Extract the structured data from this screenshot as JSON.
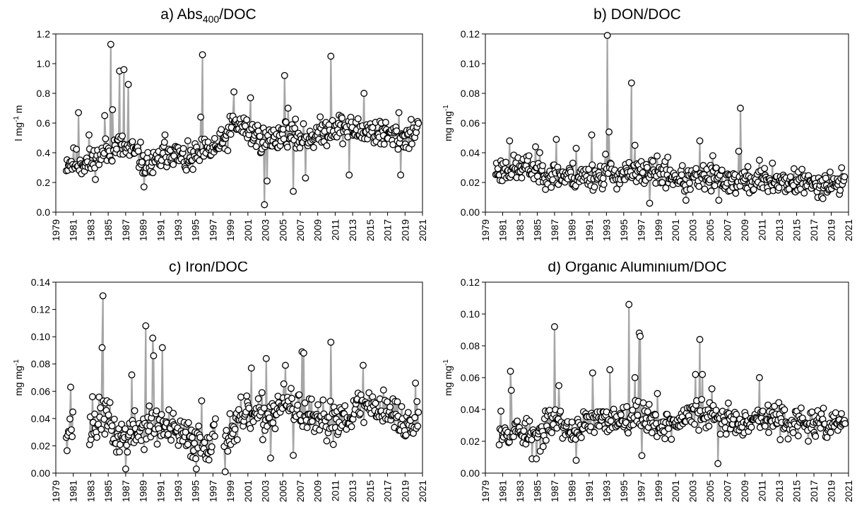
{
  "chart_data": [
    {
      "type": "scatter",
      "title": "a) Abs",
      "title_sub": "400",
      "title_tail": "/DOC",
      "ylabel": "l mg",
      "ylabel_sup": "-1",
      "ylabel_tail": " m",
      "xlim": [
        1979,
        2021
      ],
      "ylim": [
        0,
        1.2
      ],
      "yticks": [
        "0.0",
        "0.2",
        "0.4",
        "0.6",
        "0.8",
        "1.0",
        "1.2"
      ],
      "ytick_values": [
        0,
        0.2,
        0.4,
        0.6,
        0.8,
        1.0,
        1.2
      ],
      "xticks": [
        "1979",
        "1981",
        "1983",
        "1985",
        "1987",
        "1989",
        "1991",
        "1993",
        "1995",
        "1997",
        "1999",
        "2001",
        "2003",
        "2005",
        "2007",
        "2009",
        "2011",
        "2013",
        "2015",
        "2017",
        "2019",
        "2021"
      ],
      "grid": false,
      "marker": "open-circle",
      "line_color": "#a6a6a6",
      "start": 1980.2,
      "end": 2020.6,
      "gaps": [],
      "seed": 11,
      "baseline": [
        [
          1980,
          0.34
        ],
        [
          1983,
          0.33
        ],
        [
          1986,
          0.45
        ],
        [
          1988,
          0.4
        ],
        [
          1990,
          0.3
        ],
        [
          1992,
          0.42
        ],
        [
          1994,
          0.34
        ],
        [
          1996,
          0.4
        ],
        [
          1998,
          0.45
        ],
        [
          1999.5,
          0.6
        ],
        [
          2001,
          0.55
        ],
        [
          2003,
          0.48
        ],
        [
          2005,
          0.52
        ],
        [
          2007,
          0.5
        ],
        [
          2009,
          0.52
        ],
        [
          2011,
          0.58
        ],
        [
          2013,
          0.55
        ],
        [
          2015,
          0.55
        ],
        [
          2017,
          0.52
        ],
        [
          2019,
          0.5
        ],
        [
          2020.6,
          0.58
        ]
      ],
      "noise": 0.06,
      "peaks": [
        [
          1981.6,
          0.67
        ],
        [
          1982.8,
          0.52
        ],
        [
          1984.6,
          0.65
        ],
        [
          1985.3,
          1.13
        ],
        [
          1985.5,
          0.69
        ],
        [
          1986.3,
          0.95
        ],
        [
          1986.8,
          0.96
        ],
        [
          1987.3,
          0.86
        ],
        [
          1989.1,
          0.17
        ],
        [
          1991.5,
          0.52
        ],
        [
          1995.6,
          0.64
        ],
        [
          1995.8,
          1.06
        ],
        [
          1999.4,
          0.81
        ],
        [
          2001.3,
          0.77
        ],
        [
          2002.9,
          0.05
        ],
        [
          2003.2,
          0.21
        ],
        [
          2005.2,
          0.92
        ],
        [
          2005.6,
          0.7
        ],
        [
          2006.2,
          0.14
        ],
        [
          2007.6,
          0.23
        ],
        [
          2010.5,
          1.05
        ],
        [
          2012.6,
          0.25
        ],
        [
          2014.3,
          0.8
        ],
        [
          2018.5,
          0.25
        ],
        [
          2018.3,
          0.67
        ]
      ]
    },
    {
      "type": "scatter",
      "title": "b) DON/DOC",
      "ylabel": "mg mg",
      "ylabel_sup": "-1",
      "xlim": [
        1979,
        2021
      ],
      "ylim": [
        0,
        0.12
      ],
      "yticks": [
        "0.00",
        "0.02",
        "0.04",
        "0.06",
        "0.08",
        "0.10",
        "0.12"
      ],
      "ytick_values": [
        0,
        0.02,
        0.04,
        0.06,
        0.08,
        0.1,
        0.12
      ],
      "xticks": [
        "1979",
        "1981",
        "1983",
        "1985",
        "1987",
        "1989",
        "1991",
        "1993",
        "1995",
        "1997",
        "1999",
        "2001",
        "2003",
        "2005",
        "2007",
        "2009",
        "2011",
        "2013",
        "2015",
        "2017",
        "2019",
        "2021"
      ],
      "grid": false,
      "marker": "open-circle",
      "line_color": "#a6a6a6",
      "start": 1980.2,
      "end": 2020.6,
      "gaps": [],
      "seed": 23,
      "baseline": [
        [
          1980,
          0.028
        ],
        [
          1984,
          0.03
        ],
        [
          1987,
          0.025
        ],
        [
          1990,
          0.024
        ],
        [
          1993,
          0.025
        ],
        [
          1996,
          0.026
        ],
        [
          1999,
          0.027
        ],
        [
          2002,
          0.022
        ],
        [
          2005,
          0.023
        ],
        [
          2008,
          0.021
        ],
        [
          2011,
          0.021
        ],
        [
          2014,
          0.02
        ],
        [
          2017,
          0.019
        ],
        [
          2020.6,
          0.02
        ]
      ],
      "noise": 0.0055,
      "peaks": [
        [
          1981.8,
          0.048
        ],
        [
          1984.8,
          0.044
        ],
        [
          1987.2,
          0.049
        ],
        [
          1989.5,
          0.043
        ],
        [
          1991.3,
          0.052
        ],
        [
          1992.9,
          0.039
        ],
        [
          1993.1,
          0.119
        ],
        [
          1993.3,
          0.054
        ],
        [
          1995.9,
          0.087
        ],
        [
          1996.3,
          0.045
        ],
        [
          1998.0,
          0.006
        ],
        [
          2000.1,
          0.037
        ],
        [
          2002.2,
          0.008
        ],
        [
          2003.8,
          0.048
        ],
        [
          2005.3,
          0.038
        ],
        [
          2006.0,
          0.008
        ],
        [
          2008.3,
          0.041
        ],
        [
          2008.5,
          0.07
        ],
        [
          2010.7,
          0.035
        ],
        [
          2012.2,
          0.033
        ],
        [
          2015.2,
          0.027
        ]
      ]
    },
    {
      "type": "scatter",
      "title": "c) Iron/DOC",
      "ylabel": "mg mg",
      "ylabel_sup": "-1",
      "xlim": [
        1979,
        2021
      ],
      "ylim": [
        0,
        0.14
      ],
      "yticks": [
        "0.00",
        "0.02",
        "0.04",
        "0.06",
        "0.08",
        "0.10",
        "0.12",
        "0.14"
      ],
      "ytick_values": [
        0,
        0.02,
        0.04,
        0.06,
        0.08,
        0.1,
        0.12,
        0.14
      ],
      "xticks": [
        "1979",
        "1981",
        "1983",
        "1985",
        "1987",
        "1989",
        "1991",
        "1993",
        "1995",
        "1997",
        "1999",
        "2001",
        "2003",
        "2005",
        "2007",
        "2009",
        "2011",
        "2013",
        "2015",
        "2017",
        "2019",
        "2021"
      ],
      "grid": false,
      "marker": "open-circle",
      "line_color": "#a6a6a6",
      "start": 1980.2,
      "end": 2020.6,
      "gaps": [
        [
          1981.0,
          1982.8
        ],
        [
          1997.3,
          1998.2
        ]
      ],
      "seed": 37,
      "baseline": [
        [
          1980,
          0.033
        ],
        [
          1983,
          0.03
        ],
        [
          1984.5,
          0.045
        ],
        [
          1986,
          0.025
        ],
        [
          1988,
          0.03
        ],
        [
          1990,
          0.035
        ],
        [
          1992,
          0.032
        ],
        [
          1994,
          0.025
        ],
        [
          1996,
          0.022
        ],
        [
          1999,
          0.03
        ],
        [
          2001,
          0.042
        ],
        [
          2003,
          0.04
        ],
        [
          2005,
          0.05
        ],
        [
          2007,
          0.045
        ],
        [
          2009,
          0.035
        ],
        [
          2011,
          0.04
        ],
        [
          2013,
          0.045
        ],
        [
          2015,
          0.05
        ],
        [
          2017,
          0.047
        ],
        [
          2019,
          0.035
        ],
        [
          2020.6,
          0.038
        ]
      ],
      "noise": 0.009,
      "peaks": [
        [
          1980.7,
          0.063
        ],
        [
          1983.2,
          0.056
        ],
        [
          1984.3,
          0.092
        ],
        [
          1984.4,
          0.13
        ],
        [
          1987.0,
          0.003
        ],
        [
          1987.7,
          0.072
        ],
        [
          1989.3,
          0.108
        ],
        [
          1990.1,
          0.099
        ],
        [
          1990.2,
          0.086
        ],
        [
          1991.2,
          0.092
        ],
        [
          1995.1,
          0.003
        ],
        [
          1995.7,
          0.053
        ],
        [
          1998.4,
          0.001
        ],
        [
          2001.4,
          0.077
        ],
        [
          2003.1,
          0.084
        ],
        [
          2003.6,
          0.011
        ],
        [
          2005.3,
          0.079
        ],
        [
          2006.2,
          0.013
        ],
        [
          2007.2,
          0.089
        ],
        [
          2007.4,
          0.088
        ],
        [
          2010.5,
          0.096
        ],
        [
          2014.2,
          0.079
        ],
        [
          2020.2,
          0.066
        ]
      ]
    },
    {
      "type": "scatter",
      "title": "d) Organic Aluminium/DOC",
      "ylabel": "mg mg",
      "ylabel_sup": "-1",
      "xlim": [
        1979,
        2021
      ],
      "ylim": [
        0,
        0.12
      ],
      "yticks": [
        "0.00",
        "0.02",
        "0.04",
        "0.06",
        "0.08",
        "0.10",
        "0.12"
      ],
      "ytick_values": [
        0,
        0.02,
        0.04,
        0.06,
        0.08,
        0.1,
        0.12
      ],
      "xticks": [
        "1979",
        "1981",
        "1983",
        "1985",
        "1987",
        "1989",
        "1991",
        "1993",
        "1995",
        "1997",
        "1999",
        "2001",
        "2003",
        "2005",
        "2007",
        "2009",
        "2011",
        "2013",
        "2015",
        "2017",
        "2019",
        "2021"
      ],
      "grid": false,
      "marker": "open-circle",
      "line_color": "#a6a6a6",
      "start": 1980.6,
      "end": 2020.6,
      "gaps": [],
      "seed": 53,
      "baseline": [
        [
          1980.6,
          0.027
        ],
        [
          1983,
          0.027
        ],
        [
          1985,
          0.022
        ],
        [
          1987,
          0.035
        ],
        [
          1989,
          0.025
        ],
        [
          1991,
          0.032
        ],
        [
          1993,
          0.033
        ],
        [
          1995,
          0.035
        ],
        [
          1997,
          0.038
        ],
        [
          1999,
          0.03
        ],
        [
          2001,
          0.031
        ],
        [
          2003,
          0.038
        ],
        [
          2005,
          0.035
        ],
        [
          2007,
          0.033
        ],
        [
          2009,
          0.033
        ],
        [
          2011,
          0.035
        ],
        [
          2013,
          0.033
        ],
        [
          2015,
          0.032
        ],
        [
          2017,
          0.03
        ],
        [
          2019,
          0.03
        ],
        [
          2020.6,
          0.033
        ]
      ],
      "noise": 0.0055,
      "peaks": [
        [
          1980.8,
          0.039
        ],
        [
          1981.9,
          0.064
        ],
        [
          1982.0,
          0.052
        ],
        [
          1984.4,
          0.009
        ],
        [
          1984.9,
          0.009
        ],
        [
          1987.0,
          0.092
        ],
        [
          1987.5,
          0.055
        ],
        [
          1989.5,
          0.008
        ],
        [
          1991.4,
          0.063
        ],
        [
          1993.4,
          0.065
        ],
        [
          1995.6,
          0.106
        ],
        [
          1996.3,
          0.06
        ],
        [
          1996.8,
          0.088
        ],
        [
          1996.9,
          0.086
        ],
        [
          1997.1,
          0.011
        ],
        [
          1998.9,
          0.05
        ],
        [
          2003.3,
          0.062
        ],
        [
          2003.8,
          0.084
        ],
        [
          2004.1,
          0.062
        ],
        [
          2005.2,
          0.053
        ],
        [
          2005.9,
          0.006
        ],
        [
          2007.1,
          0.044
        ],
        [
          2010.7,
          0.06
        ]
      ]
    }
  ]
}
